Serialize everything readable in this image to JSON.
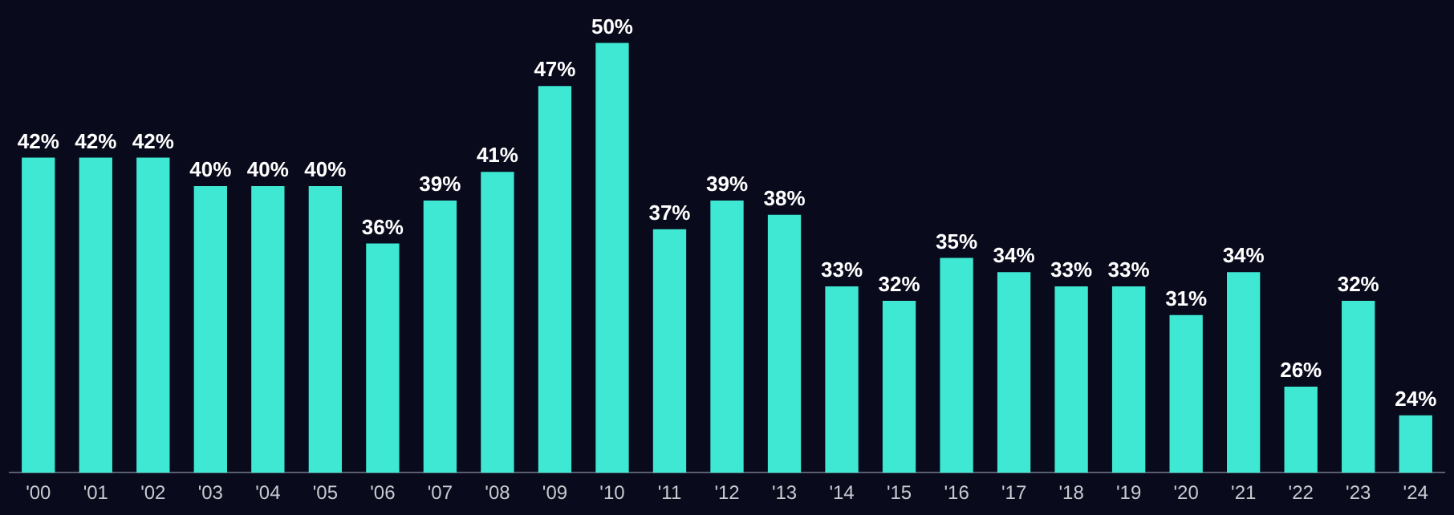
{
  "chart_data": {
    "type": "bar",
    "categories": [
      "'00",
      "'01",
      "'02",
      "'03",
      "'04",
      "'05",
      "'06",
      "'07",
      "'08",
      "'09",
      "'10",
      "'11",
      "'12",
      "'13",
      "'14",
      "'15",
      "'16",
      "'17",
      "'18",
      "'19",
      "'20",
      "'21",
      "'22",
      "'23",
      "'24"
    ],
    "values": [
      42,
      42,
      42,
      40,
      40,
      40,
      36,
      39,
      41,
      47,
      50,
      37,
      39,
      38,
      33,
      32,
      35,
      34,
      33,
      33,
      31,
      34,
      26,
      32,
      24
    ],
    "value_labels": [
      "42%",
      "42%",
      "42%",
      "40%",
      "40%",
      "40%",
      "36%",
      "39%",
      "41%",
      "47%",
      "50%",
      "37%",
      "39%",
      "38%",
      "33%",
      "32%",
      "35%",
      "34%",
      "33%",
      "33%",
      "31%",
      "34%",
      "26%",
      "32%",
      "24%"
    ],
    "color": "#3ee8d2",
    "ylim": [
      20,
      53
    ],
    "tick_labels": "x"
  }
}
